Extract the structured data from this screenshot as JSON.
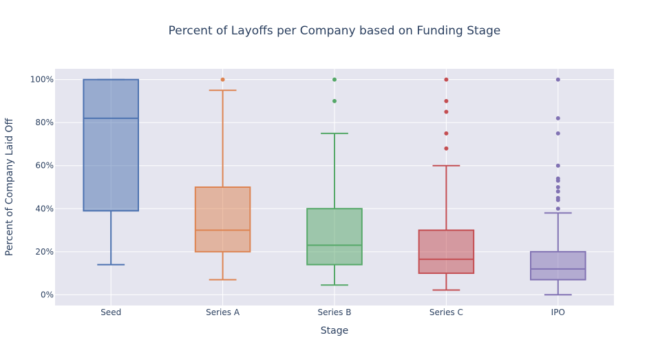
{
  "chart_data": {
    "type": "box",
    "title": "Percent of Layoffs per Company based on Funding Stage",
    "xlabel": "Stage",
    "ylabel": "Percent of Company Laid Off",
    "categories": [
      "Seed",
      "Series A",
      "Series B",
      "Series C",
      "IPO"
    ],
    "ylim": [
      -0.05,
      1.05
    ],
    "yticks": [
      0,
      0.2,
      0.4,
      0.6,
      0.8,
      1.0
    ],
    "ytick_labels": [
      "0%",
      "20%",
      "40%",
      "60%",
      "80%",
      "100%"
    ],
    "grid": true,
    "legend": "none",
    "series": [
      {
        "category": "Seed",
        "color": "#4c72b0",
        "whisker_low": 0.14,
        "q1": 0.39,
        "median": 0.82,
        "q3": 1.0,
        "whisker_high": 1.0,
        "outliers": []
      },
      {
        "category": "Series A",
        "color": "#dd8452",
        "whisker_low": 0.07,
        "q1": 0.2,
        "median": 0.3,
        "q3": 0.5,
        "whisker_high": 0.95,
        "outliers": [
          1.0
        ]
      },
      {
        "category": "Series B",
        "color": "#55a868",
        "whisker_low": 0.045,
        "q1": 0.14,
        "median": 0.23,
        "q3": 0.4,
        "whisker_high": 0.75,
        "outliers": [
          0.9,
          1.0
        ]
      },
      {
        "category": "Series C",
        "color": "#c44e52",
        "whisker_low": 0.022,
        "q1": 0.1,
        "median": 0.165,
        "q3": 0.3,
        "whisker_high": 0.6,
        "outliers": [
          0.68,
          0.75,
          0.85,
          0.9,
          1.0
        ]
      },
      {
        "category": "IPO",
        "color": "#8172b3",
        "whisker_low": 0.0,
        "q1": 0.07,
        "median": 0.12,
        "q3": 0.2,
        "whisker_high": 0.38,
        "outliers": [
          0.4,
          0.44,
          0.45,
          0.48,
          0.5,
          0.53,
          0.54,
          0.6,
          0.75,
          0.82,
          1.0
        ]
      }
    ]
  }
}
